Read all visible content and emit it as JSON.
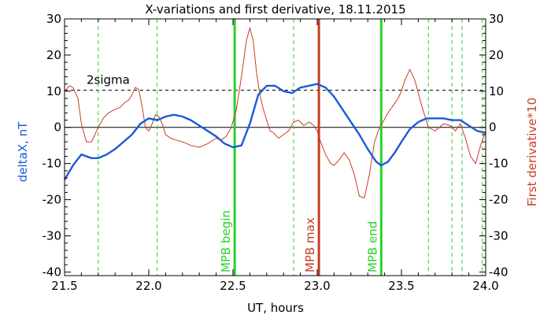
{
  "chart_data": {
    "type": "line",
    "title": "X-variations and first derivative, 18.11.2015",
    "xlabel": "UT, hours",
    "ylabel_left": "deltaX, nT",
    "ylabel_right": "First derivative*10",
    "xlim": [
      21.5,
      24.0
    ],
    "ylim": [
      -41,
      30
    ],
    "x_ticks": [
      "21.5",
      "22.0",
      "22.5",
      "23.0",
      "23.5",
      "24.0"
    ],
    "y_ticks": [
      "30",
      "20",
      "10",
      "0",
      "-10",
      "-20",
      "-30",
      "-40"
    ],
    "sigma_level": 10.3,
    "sigma_label": "2sigma",
    "colors": {
      "deltaX": "#1a5ad6",
      "derivative": "#c83c23",
      "mpb_begin_end": "#2ad12a",
      "mpb_max": "#c83c23",
      "dashed": "#2ad12a",
      "sigma": "#000000"
    },
    "dashed_green_lines": [
      21.7,
      22.05,
      22.86,
      23.66,
      23.8,
      23.86,
      23.98
    ],
    "events": [
      {
        "label": "MPB begin",
        "x": 22.51,
        "color": "#2ad12a"
      },
      {
        "label": "MPB max",
        "x": 23.01,
        "color": "#c83c23"
      },
      {
        "label": "MPB end",
        "x": 23.38,
        "color": "#2ad12a"
      }
    ],
    "series": [
      {
        "name": "deltaX, nT",
        "axis": "left",
        "x": [
          21.5,
          21.55,
          21.6,
          21.63,
          21.66,
          21.7,
          21.75,
          21.8,
          21.85,
          21.9,
          21.95,
          22.0,
          22.05,
          22.1,
          22.15,
          22.2,
          22.25,
          22.3,
          22.35,
          22.4,
          22.45,
          22.5,
          22.55,
          22.6,
          22.65,
          22.7,
          22.75,
          22.8,
          22.85,
          22.9,
          22.95,
          23.0,
          23.05,
          23.1,
          23.15,
          23.2,
          23.25,
          23.3,
          23.35,
          23.38,
          23.42,
          23.46,
          23.5,
          23.55,
          23.6,
          23.65,
          23.7,
          23.75,
          23.8,
          23.85,
          23.9,
          23.95,
          24.0
        ],
        "y": [
          -14.5,
          -10.5,
          -7.5,
          -8,
          -8.5,
          -8.5,
          -7.5,
          -6,
          -4,
          -2,
          1,
          2.5,
          2,
          3,
          3.5,
          3,
          2,
          0.5,
          -1,
          -2.5,
          -4.5,
          -5.5,
          -5,
          1,
          9,
          11.5,
          11.5,
          10,
          9.5,
          11,
          11.5,
          12,
          11,
          8.5,
          5,
          1.5,
          -2,
          -6,
          -9.5,
          -10.5,
          -9.5,
          -7,
          -4,
          -0.5,
          1.5,
          2.5,
          2.5,
          2.5,
          2,
          2,
          0.5,
          -1,
          -1.5
        ]
      },
      {
        "name": "First derivative*10",
        "axis": "right",
        "x": [
          21.5,
          21.53,
          21.55,
          21.58,
          21.6,
          21.63,
          21.66,
          21.68,
          21.7,
          21.73,
          21.76,
          21.8,
          21.83,
          21.86,
          21.88,
          21.9,
          21.92,
          21.94,
          21.96,
          21.98,
          22.0,
          22.02,
          22.04,
          22.06,
          22.08,
          22.1,
          22.13,
          22.16,
          22.2,
          22.25,
          22.3,
          22.35,
          22.4,
          22.43,
          22.46,
          22.49,
          22.52,
          22.55,
          22.58,
          22.6,
          22.62,
          22.64,
          22.66,
          22.68,
          22.7,
          22.72,
          22.74,
          22.77,
          22.8,
          22.83,
          22.86,
          22.89,
          22.92,
          22.95,
          22.98,
          23.0,
          23.02,
          23.05,
          23.08,
          23.1,
          23.13,
          23.16,
          23.19,
          23.22,
          23.25,
          23.28,
          23.31,
          23.34,
          23.37,
          23.39,
          23.42,
          23.45,
          23.48,
          23.5,
          23.52,
          23.55,
          23.58,
          23.62,
          23.66,
          23.7,
          23.75,
          23.79,
          23.82,
          23.85,
          23.88,
          23.91,
          23.94,
          23.97,
          24.0
        ],
        "y": [
          10,
          11.5,
          11,
          8,
          1,
          -4,
          -4,
          -2,
          0,
          2.5,
          4,
          5,
          5.5,
          7,
          7.5,
          9,
          11,
          10.5,
          6,
          0,
          -1,
          1,
          3.5,
          3,
          1,
          -2,
          -3,
          -3.5,
          -4,
          -5,
          -5.5,
          -4.5,
          -3,
          -3.5,
          -2.5,
          0,
          5,
          14,
          24,
          27.5,
          24,
          15,
          9,
          5,
          2,
          -1,
          -1.5,
          -3,
          -2,
          -1,
          1.5,
          2,
          0.5,
          1.5,
          0.5,
          -1,
          -4,
          -7.5,
          -10,
          -10.5,
          -9,
          -7,
          -9,
          -13,
          -19,
          -19.5,
          -13,
          -4,
          0,
          1.5,
          4,
          6,
          8,
          10,
          13,
          16,
          13,
          6,
          0,
          -1,
          1,
          0.5,
          -1,
          1,
          -3,
          -8,
          -10,
          -5,
          -1
        ]
      }
    ]
  }
}
